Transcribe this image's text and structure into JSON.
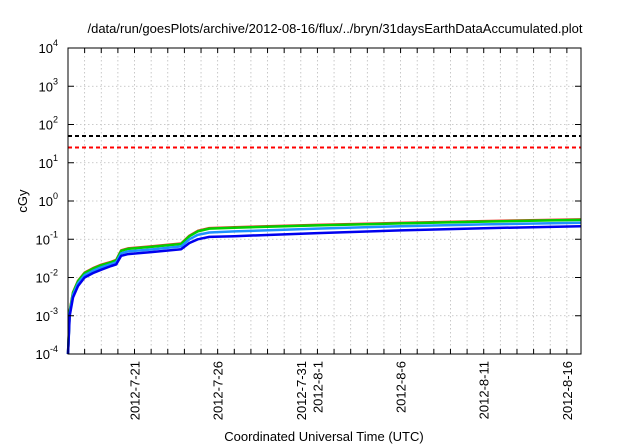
{
  "chart_data": {
    "type": "line",
    "title": "/data/run/goesPlots/archive/2012-08-16/flux/../bryn/31daysEarthDataAccumulated.plot",
    "xlabel": "Coordinated Universal Time (UTC)",
    "ylabel": "cGy",
    "x_units": "days since 2012-07-17 00:00 UTC",
    "xlim": [
      0,
      30.85
    ],
    "ylim": [
      0.0001,
      10000
    ],
    "yscale": "log",
    "grid": true,
    "x_tick_labels": [
      {
        "day": 4,
        "label": "2012-7-21"
      },
      {
        "day": 9,
        "label": "2012-7-26"
      },
      {
        "day": 14,
        "label": "2012-7-31"
      },
      {
        "day": 15,
        "label": "2012-8-1"
      },
      {
        "day": 20,
        "label": "2012-8-6"
      },
      {
        "day": 25,
        "label": "2012-8-11"
      },
      {
        "day": 30,
        "label": "2012-8-16"
      }
    ],
    "y_tick_labels": [
      {
        "exp": "-4",
        "base": "10"
      },
      {
        "exp": "-3",
        "base": "10"
      },
      {
        "exp": "-2",
        "base": "10"
      },
      {
        "exp": "-1",
        "base": "10"
      },
      {
        "exp": "0",
        "base": "10"
      },
      {
        "exp": "1",
        "base": "10"
      },
      {
        "exp": "2",
        "base": "10"
      },
      {
        "exp": "3",
        "base": "10"
      },
      {
        "exp": "4",
        "base": "10"
      }
    ],
    "thresholds": [
      {
        "value": 50,
        "color": "#000000"
      },
      {
        "value": 25,
        "color": "#ff0000"
      }
    ],
    "x": [
      0,
      0.1,
      0.3,
      0.6,
      1,
      1.5,
      2,
      2.6,
      2.9,
      3.2,
      3.6,
      5,
      6.8,
      7.3,
      7.8,
      8.5,
      10,
      15,
      20,
      25,
      30.85
    ],
    "series": [
      {
        "name": "red",
        "color": "#e8392a",
        "values": [
          0.0001,
          0.00135,
          0.0041,
          0.0082,
          0.0134,
          0.0175,
          0.0216,
          0.0258,
          0.0288,
          0.0515,
          0.0577,
          0.065,
          0.0775,
          0.124,
          0.165,
          0.196,
          0.206,
          0.237,
          0.268,
          0.299,
          0.33
        ]
      },
      {
        "name": "green",
        "color": "#00d000",
        "values": [
          0.0001,
          0.0013,
          0.004,
          0.008,
          0.013,
          0.017,
          0.021,
          0.025,
          0.028,
          0.05,
          0.056,
          0.063,
          0.075,
          0.12,
          0.16,
          0.19,
          0.2,
          0.23,
          0.26,
          0.29,
          0.32
        ]
      },
      {
        "name": "light-blue",
        "color": "#1e90ff",
        "values": [
          0.0001,
          0.00115,
          0.0035,
          0.007,
          0.0115,
          0.015,
          0.0185,
          0.0225,
          0.025,
          0.043,
          0.048,
          0.054,
          0.065,
          0.1,
          0.13,
          0.15,
          0.16,
          0.19,
          0.22,
          0.245,
          0.27
        ]
      },
      {
        "name": "blue",
        "color": "#0000ee",
        "values": [
          0.0001,
          0.001,
          0.003,
          0.006,
          0.01,
          0.013,
          0.016,
          0.02,
          0.022,
          0.037,
          0.041,
          0.046,
          0.055,
          0.08,
          0.1,
          0.115,
          0.12,
          0.145,
          0.17,
          0.195,
          0.22
        ]
      }
    ]
  }
}
